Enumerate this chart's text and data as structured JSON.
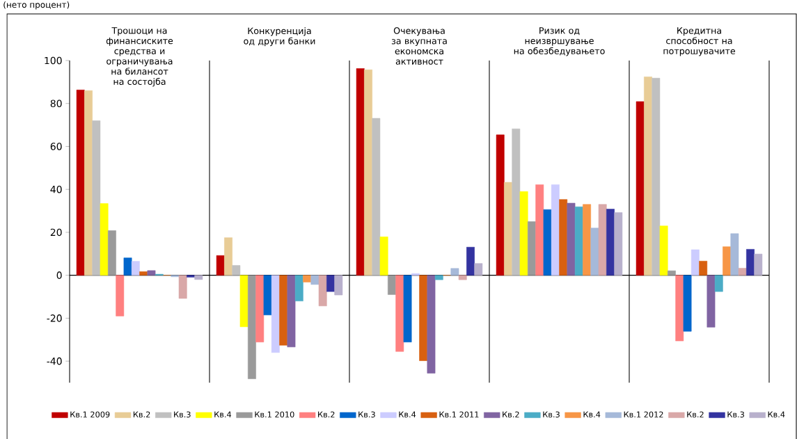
{
  "chart_data": {
    "type": "bar",
    "annotations": [
      "(нето процент)"
    ],
    "categories": [
      "Трошоци на финансиските средства и ограничувања на билансот на состојба",
      "Конкуренција од други банки",
      "Очекувања за вкупната економска активност",
      "Ризик од неизвршување на обезбедувањето",
      "Кредитна способност на потрошувачите"
    ],
    "series": [
      {
        "name": "Кв.1 2009",
        "color": "#c00000",
        "values": [
          86.3,
          9.2,
          96.3,
          65.4,
          80.9
        ]
      },
      {
        "name": "Кв.2",
        "color": "#e8cc96",
        "values": [
          86,
          17.5,
          95.7,
          43.3,
          92.4
        ]
      },
      {
        "name": "Кв.3",
        "color": "#c0c0c0",
        "values": [
          72,
          4.6,
          73.1,
          68.2,
          91.8
        ]
      },
      {
        "name": "Кв.4",
        "color": "#ffff00",
        "values": [
          33.4,
          -24,
          17.9,
          39,
          23
        ]
      },
      {
        "name": "Кв.1 2010",
        "color": "#9a9a9a",
        "values": [
          20.8,
          -48.2,
          -9,
          25,
          2.1
        ]
      },
      {
        "name": "Кв.2",
        "color": "#ff8080",
        "values": [
          -19,
          -31.1,
          -35.5,
          42.2,
          -30.6
        ]
      },
      {
        "name": "Кв.3",
        "color": "#0066cc",
        "values": [
          8.1,
          -18.5,
          -31.1,
          30.6,
          -26.1
        ]
      },
      {
        "name": "Кв.4",
        "color": "#ccccff",
        "values": [
          6.5,
          -36,
          0.8,
          42.2,
          11.9
        ]
      },
      {
        "name": "Кв.1 2011",
        "color": "#d86010",
        "values": [
          1.7,
          -32.6,
          -39.8,
          35.3,
          6.6
        ]
      },
      {
        "name": "Кв.2",
        "color": "#8064a2",
        "values": [
          2.2,
          -33.4,
          -45.6,
          33.6,
          -24.2
        ]
      },
      {
        "name": "Кв.3",
        "color": "#4bacc6",
        "values": [
          0.5,
          -12,
          -2.1,
          31.9,
          -7.6
        ]
      },
      {
        "name": "Кв.4",
        "color": "#f79646",
        "values": [
          0,
          -3.2,
          0,
          33,
          13.3
        ]
      },
      {
        "name": "Кв.1 2012",
        "color": "#a6b9d9",
        "values": [
          -0.7,
          -4.3,
          3.2,
          22,
          19.4
        ]
      },
      {
        "name": "Кв.2",
        "color": "#d9a8a8",
        "values": [
          -10.8,
          -14.3,
          -2.1,
          33,
          3.3
        ]
      },
      {
        "name": "Кв.3",
        "color": "#3333a0",
        "values": [
          -0.9,
          -7.6,
          13.1,
          30.8,
          12.1
        ]
      },
      {
        "name": "Кв.4",
        "color": "#b8b0cc",
        "values": [
          -2,
          -9.2,
          5.5,
          29.2,
          9.9
        ]
      }
    ],
    "ylim": [
      -50,
      100
    ],
    "yticks": [
      -40,
      -20,
      0,
      20,
      40,
      60,
      80,
      100
    ],
    "legend": "bottom"
  }
}
